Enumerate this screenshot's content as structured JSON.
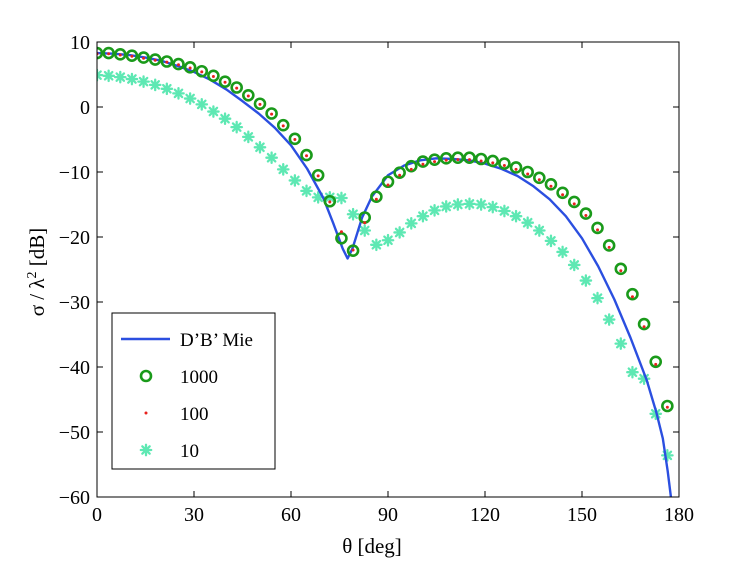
{
  "chart_data": {
    "type": "line",
    "title": "",
    "xlabel": "θ [deg]",
    "ylabel_main": "σ / λ",
    "ylabel_sup": "2",
    "ylabel_unit": " [dB]",
    "xlim": [
      0,
      180
    ],
    "ylim": [
      -60,
      10
    ],
    "xticks": [
      0,
      30,
      60,
      90,
      120,
      150,
      180
    ],
    "yticks": [
      10,
      0,
      -10,
      -20,
      -30,
      -40,
      -50,
      -60
    ],
    "ytick_labels": [
      "10",
      "0",
      "−10",
      "−20",
      "−30",
      "−40",
      "−50",
      "−60"
    ],
    "grid": false,
    "legend_position": "bottom-left",
    "colors": {
      "mie": "#2b4fe0",
      "n1000": "#1a9a1a",
      "n100": "#e8211d",
      "n10": "#5ee8b3"
    },
    "series": [
      {
        "name": "D’B’ Mie",
        "style": "line",
        "x": [
          0,
          5,
          10,
          15,
          20,
          25,
          30,
          35,
          40,
          45,
          50,
          55,
          60,
          65,
          70,
          73,
          76,
          77.5,
          79,
          82,
          85,
          90,
          95,
          100,
          105,
          110,
          115,
          120,
          125,
          130,
          135,
          140,
          145,
          150,
          155,
          160,
          165,
          170,
          173,
          175,
          176.5,
          177.5
        ],
        "y": [
          8.3,
          8.2,
          8.0,
          7.6,
          7.1,
          6.3,
          5.4,
          4.2,
          2.7,
          0.9,
          -1.0,
          -3.2,
          -5.9,
          -9.5,
          -14.0,
          -17.8,
          -21.8,
          -23.3,
          -21.8,
          -17.0,
          -13.8,
          -10.5,
          -9.0,
          -8.2,
          -7.9,
          -8.0,
          -8.2,
          -8.7,
          -9.5,
          -10.6,
          -12.2,
          -14.2,
          -16.8,
          -20.2,
          -24.5,
          -29.6,
          -35.5,
          -42.0,
          -47.0,
          -51.0,
          -56.0,
          -60.0
        ]
      },
      {
        "name": "1000",
        "style": "circle",
        "x": [
          0,
          3.6,
          7.2,
          10.8,
          14.4,
          18,
          21.6,
          25.2,
          28.8,
          32.4,
          36,
          39.6,
          43.2,
          46.8,
          50.4,
          54,
          57.6,
          61.2,
          64.8,
          68.4,
          72,
          75.6,
          79.2,
          82.8,
          86.4,
          90,
          93.6,
          97.2,
          100.8,
          104.4,
          108,
          111.6,
          115.2,
          118.8,
          122.4,
          126,
          129.6,
          133.2,
          136.8,
          140.4,
          144,
          147.6,
          151.2,
          154.8,
          158.4,
          162,
          165.6,
          169.2,
          172.8,
          176.4
        ],
        "y": [
          8.3,
          8.3,
          8.1,
          7.9,
          7.6,
          7.3,
          7.0,
          6.6,
          6.1,
          5.5,
          4.8,
          3.9,
          3.0,
          1.8,
          0.5,
          -1.0,
          -2.8,
          -4.9,
          -7.4,
          -10.5,
          -14.5,
          -20.2,
          -22.1,
          -17.0,
          -13.8,
          -11.5,
          -10.1,
          -9.1,
          -8.4,
          -8.1,
          -7.9,
          -7.8,
          -7.8,
          -8.0,
          -8.3,
          -8.7,
          -9.3,
          -10.0,
          -10.9,
          -11.9,
          -13.2,
          -14.6,
          -16.4,
          -18.6,
          -21.3,
          -24.9,
          -28.8,
          -33.4,
          -39.2,
          -46.0
        ]
      },
      {
        "name": "100",
        "style": "dot",
        "x": [
          0,
          3.6,
          7.2,
          10.8,
          14.4,
          18,
          21.6,
          25.2,
          28.8,
          32.4,
          36,
          39.6,
          43.2,
          46.8,
          50.4,
          54,
          57.6,
          61.2,
          64.8,
          68.4,
          72,
          75.6,
          79.2,
          82.8,
          86.4,
          90,
          93.6,
          97.2,
          100.8,
          104.4,
          108,
          111.6,
          115.2,
          118.8,
          122.4,
          126,
          129.6,
          133.2,
          136.8,
          140.4,
          144,
          147.6,
          151.2,
          154.8,
          158.4,
          162,
          165.6,
          169.2,
          172.8,
          176.4
        ],
        "y": [
          8.2,
          8.2,
          8.0,
          7.8,
          7.5,
          7.2,
          6.9,
          6.5,
          6.0,
          5.4,
          4.7,
          3.8,
          2.9,
          1.7,
          0.4,
          -1.1,
          -2.9,
          -5.0,
          -7.5,
          -10.6,
          -14.6,
          -19.2,
          -22.0,
          -17.8,
          -14.2,
          -12.0,
          -10.5,
          -9.6,
          -8.8,
          -8.4,
          -8.2,
          -8.1,
          -8.1,
          -8.3,
          -8.6,
          -9.0,
          -9.6,
          -10.3,
          -11.2,
          -12.2,
          -13.5,
          -14.9,
          -16.7,
          -18.9,
          -21.6,
          -25.2,
          -29.2,
          -33.8,
          -39.6,
          -46.2
        ]
      },
      {
        "name": "10",
        "style": "asterisk",
        "x": [
          0,
          3.6,
          7.2,
          10.8,
          14.4,
          18,
          21.6,
          25.2,
          28.8,
          32.4,
          36,
          39.6,
          43.2,
          46.8,
          50.4,
          54,
          57.6,
          61.2,
          64.8,
          68.4,
          72,
          75.6,
          79.2,
          82.8,
          86.4,
          90,
          93.6,
          97.2,
          100.8,
          104.4,
          108,
          111.6,
          115.2,
          118.8,
          122.4,
          126,
          129.6,
          133.2,
          136.8,
          140.4,
          144,
          147.6,
          151.2,
          154.8,
          158.4,
          162,
          165.6,
          169.2,
          172.8,
          176.4
        ],
        "y": [
          4.9,
          4.8,
          4.6,
          4.3,
          3.9,
          3.4,
          2.8,
          2.1,
          1.3,
          0.4,
          -0.7,
          -1.8,
          -3.1,
          -4.6,
          -6.2,
          -7.8,
          -9.6,
          -11.3,
          -12.9,
          -13.9,
          -13.9,
          -14.0,
          -16.5,
          -19.0,
          -21.2,
          -20.5,
          -19.3,
          -17.9,
          -16.8,
          -15.9,
          -15.3,
          -15.0,
          -14.9,
          -15.0,
          -15.4,
          -16.0,
          -16.8,
          -17.8,
          -19.0,
          -20.6,
          -22.3,
          -24.3,
          -26.7,
          -29.4,
          -32.7,
          -36.4,
          -40.8,
          -41.8,
          -47.2,
          -53.6
        ]
      }
    ]
  }
}
